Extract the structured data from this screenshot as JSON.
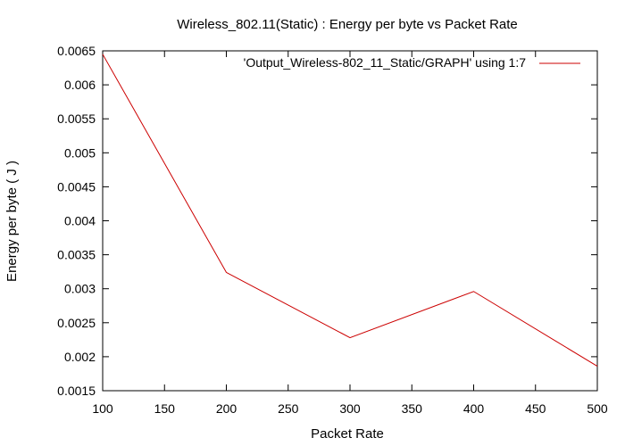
{
  "chart_data": {
    "type": "line",
    "title": "Wireless_802.11(Static) : Energy per byte vs Packet Rate",
    "xlabel": "Packet Rate",
    "ylabel": "Energy per byte ( J )",
    "xlim": [
      100,
      500
    ],
    "ylim": [
      0.0015,
      0.0065
    ],
    "x_ticks": [
      "100",
      "150",
      "200",
      "250",
      "300",
      "350",
      "400",
      "450",
      "500"
    ],
    "y_ticks": [
      "0.0065",
      "0.006",
      "0.0055",
      "0.005",
      "0.0045",
      "0.004",
      "0.0035",
      "0.003",
      "0.0025",
      "0.002",
      "0.0015"
    ],
    "grid": false,
    "legend_position": "top-right",
    "series": [
      {
        "name": "'Output_Wireless-802_11_Static/GRAPH' using 1:7",
        "color": "#cc0000",
        "x": [
          100,
          200,
          300,
          400,
          500
        ],
        "y": [
          0.00645,
          0.00324,
          0.00228,
          0.00296,
          0.00186
        ]
      }
    ]
  }
}
